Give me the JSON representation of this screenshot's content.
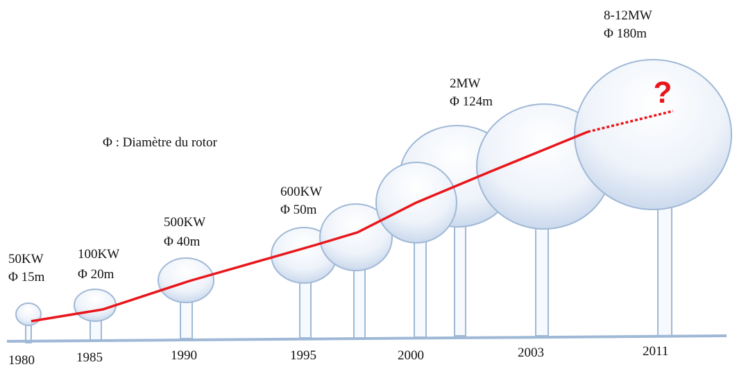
{
  "labels": [
    {
      "power": "50KW",
      "diameter": "Φ 15m"
    },
    {
      "power": "100KW",
      "diameter": "Φ 20m"
    },
    {
      "power": "500KW",
      "diameter": "Φ 40m"
    },
    {
      "power": "600KW",
      "diameter": "Φ 50m"
    },
    {
      "power": "2MW",
      "diameter": "Φ 124m"
    },
    {
      "power": "8-12MW",
      "diameter": "Φ 180m"
    }
  ],
  "years": [
    "1980",
    "1985",
    "1990",
    "1995",
    "2000",
    "2003",
    "2011"
  ],
  "legend": "Φ : Diamètre du rotor",
  "question_mark": "?"
}
